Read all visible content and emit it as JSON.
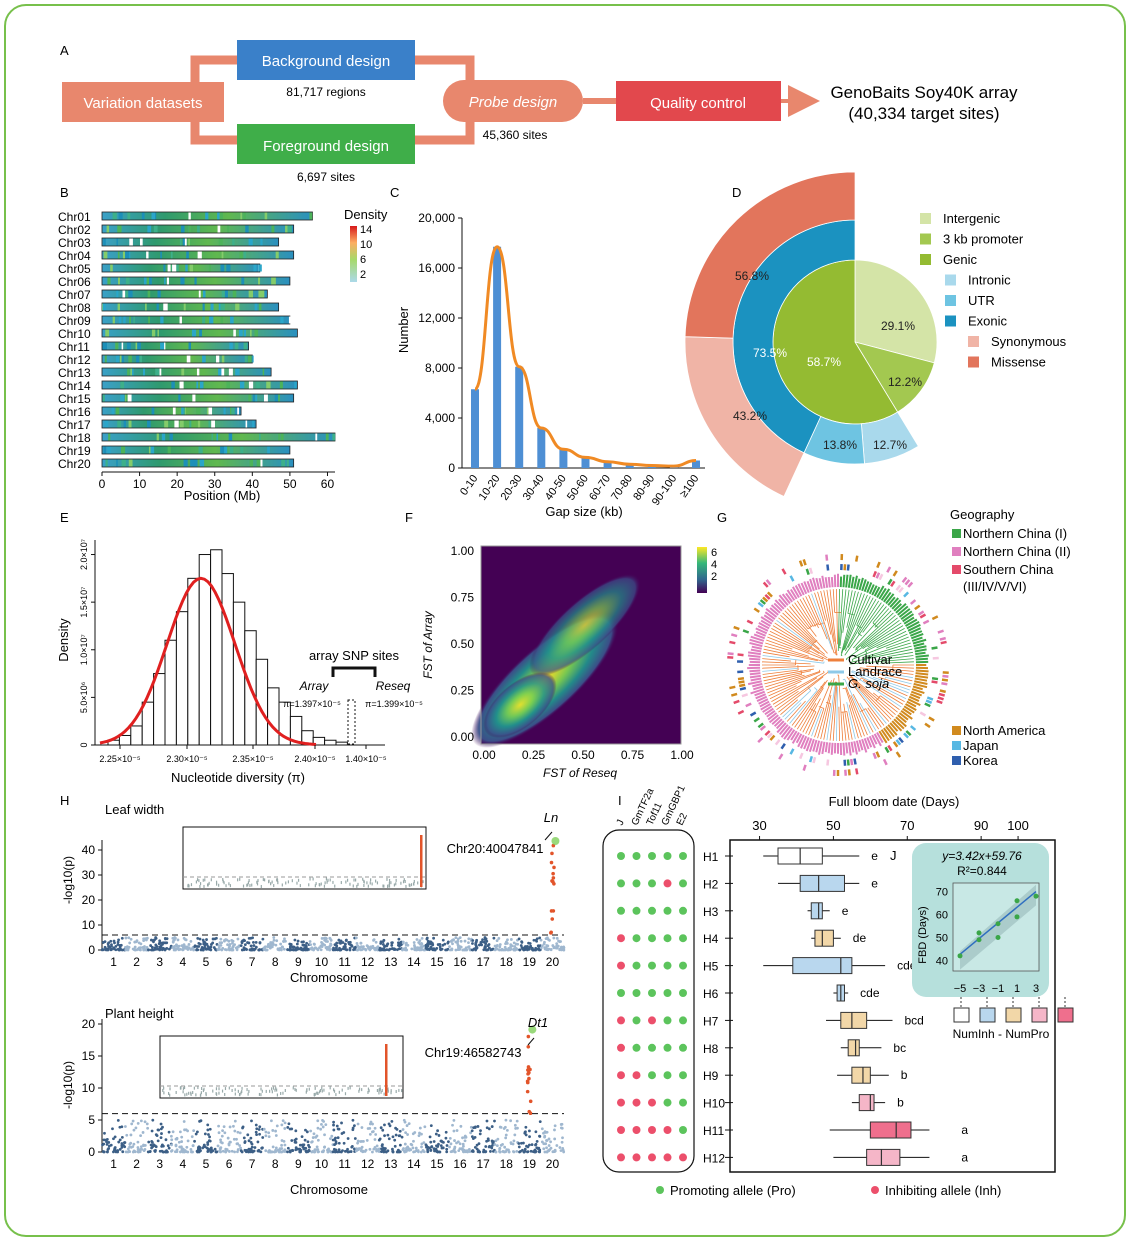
{
  "panels": {
    "a": "A",
    "b": "B",
    "c": "C",
    "d": "D",
    "e": "E",
    "f": "F",
    "g": "G",
    "h": "H",
    "i": "I",
    "j": "J"
  },
  "flow": {
    "variation": "Variation datasets",
    "background": "Background design",
    "regions": "81,717 regions",
    "foreground": "Foreground design",
    "fg_sites": "6,697 sites",
    "probe": "Probe design",
    "probe_sites": "45,360 sites",
    "qc": "Quality control",
    "array_line1": "GenoBaits Soy40K array",
    "array_line2": "(40,334 target sites)",
    "colors": {
      "salmon": "#e8876d",
      "blue": "#3a80c9",
      "green": "#3fae49",
      "red": "#e2484d"
    }
  },
  "chromosomes": {
    "labels": [
      "Chr01",
      "Chr02",
      "Chr03",
      "Chr04",
      "Chr05",
      "Chr06",
      "Chr07",
      "Chr08",
      "Chr09",
      "Chr10",
      "Chr11",
      "Chr12",
      "Chr13",
      "Chr14",
      "Chr15",
      "Chr16",
      "Chr17",
      "Chr18",
      "Chr19",
      "Chr20"
    ],
    "lengths_mb": [
      56,
      51,
      47,
      51,
      42,
      50,
      44,
      47,
      50,
      52,
      39,
      40,
      45,
      52,
      51,
      37,
      41,
      62,
      50,
      51
    ],
    "xticks": [
      "0",
      "10",
      "20",
      "30",
      "40",
      "50",
      "60"
    ],
    "xlabel": "Position (Mb)",
    "legend_title": "Density",
    "legend_ticks": [
      "14",
      "10",
      "6",
      "2"
    ]
  },
  "chart_data": [
    {
      "type": "bar",
      "title": "",
      "categories": [
        "0-10",
        "10-20",
        "20-30",
        "30-40",
        "40-50",
        "50-60",
        "60-70",
        "70-80",
        "80-90",
        "90-100",
        "≥100"
      ],
      "values": [
        6300,
        17700,
        8100,
        3200,
        1500,
        850,
        500,
        300,
        200,
        150,
        600
      ],
      "xlabel": "Gap size (kb)",
      "ylabel": "Number",
      "ylim": [
        0,
        20000
      ],
      "yticks": [
        "0",
        "4,000",
        "8,000",
        "12,000",
        "16,000",
        "20,000"
      ]
    },
    {
      "type": "pie",
      "outer": {
        "labels": [
          "Synonymous",
          "Missense"
        ],
        "values": [
          43.2,
          56.8
        ]
      },
      "middle": {
        "labels": [
          "Intronic",
          "UTR",
          "Exonic"
        ],
        "values": [
          12.7,
          13.8,
          73.5
        ]
      },
      "inner": {
        "labels": [
          "Intergenic",
          "3 kb promoter",
          "Genic"
        ],
        "values": [
          29.1,
          12.2,
          58.7
        ]
      },
      "value_labels": [
        "56.8%",
        "43.2%",
        "73.5%",
        "13.8%",
        "12.7%",
        "58.7%",
        "29.1%",
        "12.2%"
      ]
    },
    {
      "type": "bar",
      "categories": [
        "2.25×10⁻⁵",
        "2.30×10⁻⁵",
        "2.35×10⁻⁵",
        "2.40×10⁻⁵",
        "1.40×10⁻⁵"
      ],
      "xlabel": "Nucleotide diversity (π)",
      "ylabel": "Density",
      "yticks": [
        "0",
        "5.0×10⁶",
        "1.0×10⁷",
        "1.5×10⁷",
        "2.0×10⁷"
      ],
      "hist_values": [
        0.05,
        0.1,
        0.2,
        0.45,
        0.75,
        1.1,
        1.4,
        1.75,
        2.0,
        2.05,
        1.8,
        1.5,
        1.2,
        0.9,
        0.6,
        0.45,
        0.3,
        0.15,
        0.08,
        0.05,
        0.03
      ],
      "annot_title": "array SNP sites",
      "annot_array": "Array",
      "annot_reseq": "Reseq",
      "annot_array_pi": "π=1.397×10⁻⁵",
      "annot_reseq_pi": "π=1.399×10⁻⁵"
    },
    {
      "type": "heatmap",
      "xlabel": "FST of Reseq",
      "ylabel": "FST of Array",
      "xticks": [
        "0.00",
        "0.25",
        "0.50",
        "0.75",
        "1.00"
      ],
      "yticks": [
        "0.00",
        "0.25",
        "0.50",
        "0.75",
        "1.00"
      ],
      "colorbar_ticks": [
        "6",
        "4",
        "2"
      ]
    },
    {
      "type": "scatter",
      "title": "Leaf width",
      "ylabel": "-log10(p)",
      "xlabel": "Chromosome",
      "yticks": [
        "0",
        "10",
        "20",
        "30",
        "40"
      ],
      "peak_gene": "Ln",
      "peak_label": "Chr20:40047841",
      "threshold": 6
    },
    {
      "type": "scatter",
      "title": "Plant height",
      "ylabel": "-log10(p)",
      "xlabel": "Chromosome",
      "yticks": [
        "0",
        "5",
        "10",
        "15",
        "20"
      ],
      "peak_gene": "Dt1",
      "peak_label": "Chr19:46582743",
      "threshold": 6
    },
    {
      "type": "bar",
      "title": "Full bloom date (Days)",
      "xticks": [
        "30",
        "50",
        "70",
        "90",
        "100"
      ],
      "categories": [
        "H1",
        "H2",
        "H3",
        "H4",
        "H5",
        "H6",
        "H7",
        "H8",
        "H9",
        "H10",
        "H11",
        "H12"
      ],
      "letters": [
        "e",
        "e",
        "e",
        "de",
        "cde",
        "cde",
        "bcd",
        "bc",
        "b",
        "b",
        "a",
        "a"
      ],
      "box_q1": [
        35,
        41,
        44,
        45,
        39,
        51,
        52,
        54,
        55,
        57,
        60,
        59
      ],
      "box_med": [
        41,
        46,
        46,
        47,
        52,
        52,
        55,
        56,
        58,
        60,
        67,
        63
      ],
      "box_q3": [
        47,
        53,
        47,
        50,
        55,
        53,
        59,
        57,
        60,
        61,
        71,
        68
      ],
      "whisk_lo": [
        31,
        35,
        43,
        44,
        31,
        50,
        48,
        52,
        51,
        55,
        49,
        50
      ],
      "whisk_hi": [
        57,
        57,
        49,
        52,
        64,
        54,
        66,
        63,
        65,
        64,
        76,
        76
      ],
      "col_labels": [
        "J",
        "GmTF2a",
        "Tof11",
        "GmGBP1",
        "E2"
      ],
      "allele_rows": [
        [
          "p",
          "p",
          "p",
          "p",
          "p"
        ],
        [
          "p",
          "p",
          "p",
          "i",
          "p"
        ],
        [
          "p",
          "p",
          "p",
          "p",
          "p"
        ],
        [
          "i",
          "p",
          "p",
          "p",
          "p"
        ],
        [
          "i",
          "p",
          "p",
          "p",
          "p"
        ],
        [
          "p",
          "p",
          "p",
          "p",
          "p"
        ],
        [
          "i",
          "p",
          "i",
          "p",
          "p"
        ],
        [
          "i",
          "p",
          "p",
          "p",
          "p"
        ],
        [
          "i",
          "i",
          "p",
          "p",
          "p"
        ],
        [
          "i",
          "i",
          "i",
          "p",
          "p"
        ],
        [
          "i",
          "i",
          "i",
          "i",
          "p"
        ],
        [
          "i",
          "i",
          "i",
          "i",
          "i"
        ]
      ]
    },
    {
      "type": "scatter",
      "equation": "y=3.42x+59.76",
      "r2": "R²=0.844",
      "ylabel": "FBD (Days)",
      "xticks": [
        "−5",
        "−3",
        "−1",
        "1",
        "3"
      ],
      "yticks": [
        "40",
        "50",
        "60",
        "70"
      ],
      "x": [
        -5,
        -3,
        -3,
        -1,
        -1,
        1,
        1,
        3
      ],
      "y": [
        42,
        49,
        52,
        50,
        56,
        59,
        66,
        68
      ],
      "xlabel": "NumInh - NumPro"
    }
  ],
  "legend_g": {
    "geography_title": "Geography",
    "items": [
      "Northern China (I)",
      "Northern China (II)",
      "Southern China",
      "(III/IV/V/VI)",
      "North America",
      "Japan",
      "Korea"
    ],
    "types": [
      "Cultivar",
      "Landrace",
      "G. soja"
    ]
  },
  "legend_d": [
    "Intergenic",
    "3 kb promoter",
    "Genic",
    "Intronic",
    "UTR",
    "Exonic",
    "Synonymous",
    "Missense"
  ],
  "legend_i": {
    "promoting": "Promoting allele (Pro)",
    "inhibiting": "Inhibiting allele (Inh)"
  }
}
